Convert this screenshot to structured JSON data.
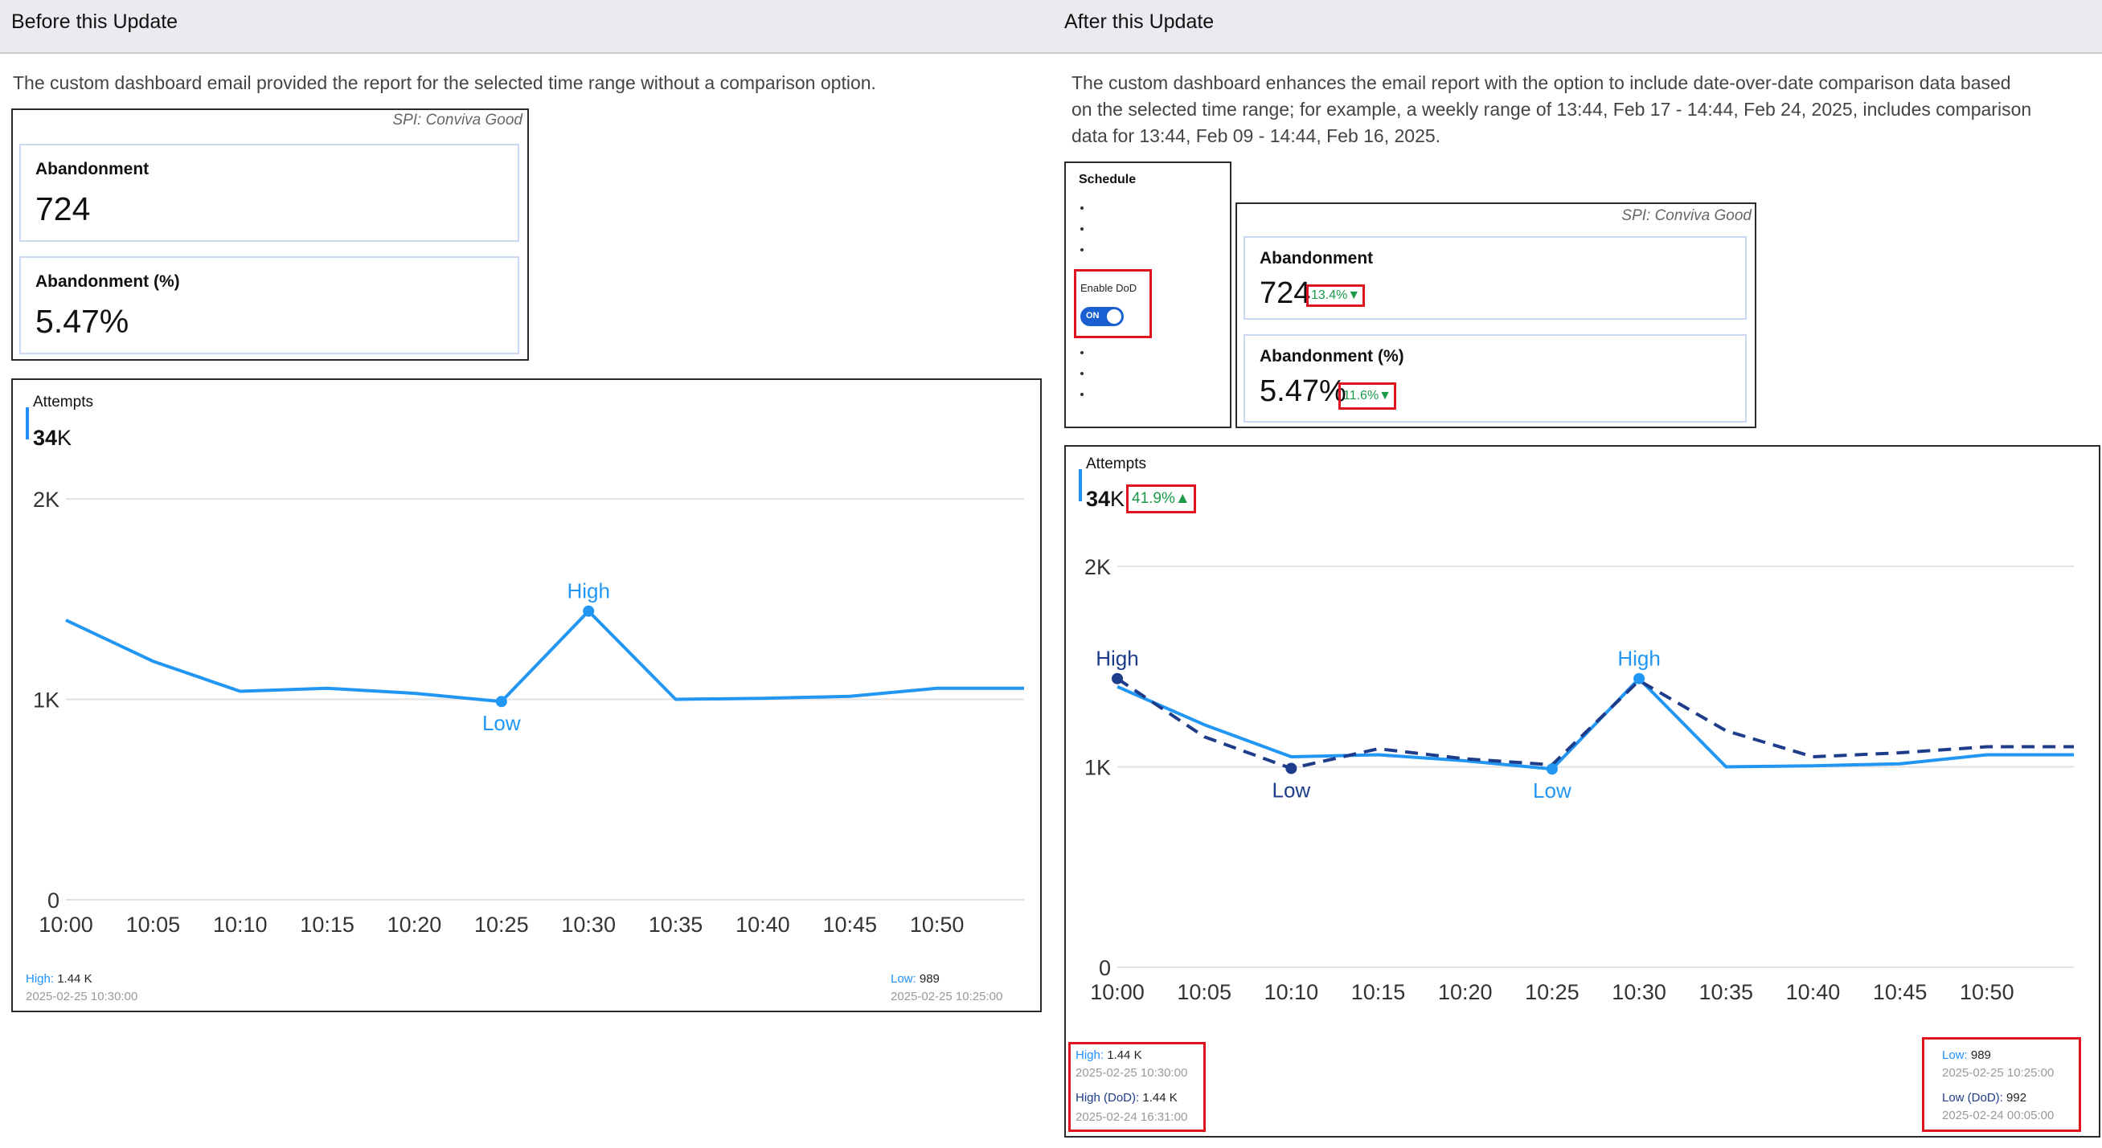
{
  "before": {
    "header": "Before this Update",
    "description": "The custom dashboard email provided the report for the selected time range without a comparison option.",
    "spi": "SPI: Conviva Good",
    "cards": [
      {
        "label": "Abandonment",
        "value": "724"
      },
      {
        "label": "Abandonment (%)",
        "value": "5.47%"
      }
    ],
    "chart": {
      "title": "Attempts",
      "total_bold": "34",
      "total_suffix": "K",
      "high_label": "High",
      "low_label": "Low",
      "legend": {
        "high": {
          "name": "High:",
          "value": "1.44 K",
          "time": "2025-02-25 10:30:00"
        },
        "low": {
          "name": "Low:",
          "value": "989",
          "time": "2025-02-25 10:25:00"
        }
      }
    }
  },
  "after": {
    "header": "After this Update",
    "description_lines": [
      "The custom dashboard enhances the email report with the option to include date-over-date comparison data based",
      "on the selected time range; for example, a weekly range of 13:44, Feb 17 - 14:44, Feb 24, 2025, includes comparison",
      "data for 13:44, Feb 09 - 14:44, Feb 16, 2025."
    ],
    "schedule": {
      "title": "Schedule",
      "toggle_label": "Enable DoD",
      "toggle_state": "ON"
    },
    "spi": "SPI: Conviva Good",
    "cards": [
      {
        "label": "Abandonment",
        "value": "724",
        "change": "13.4%▼"
      },
      {
        "label": "Abandonment (%)",
        "value": "5.47%",
        "change": "11.6%▼"
      }
    ],
    "chart": {
      "title": "Attempts",
      "total_bold": "34",
      "total_suffix": "K",
      "change": "41.9%▲",
      "high_label": "High",
      "low_label": "Low",
      "legend": {
        "high": {
          "name": "High:",
          "value": "1.44 K",
          "time": "2025-02-25 10:30:00"
        },
        "high_dod": {
          "name": "High (DoD):",
          "value": "1.44 K",
          "time": "2025-02-24 16:31:00"
        },
        "low": {
          "name": "Low:",
          "value": "989",
          "time": "2025-02-25 10:25:00"
        },
        "low_dod": {
          "name": "Low (DoD):",
          "value": "992",
          "time": "2025-02-24  00:05:00"
        }
      }
    }
  },
  "chart_data": [
    {
      "type": "line",
      "title": "Attempts",
      "x": [
        "10:00",
        "10:05",
        "10:10",
        "10:15",
        "10:20",
        "10:25",
        "10:30",
        "10:35",
        "10:40",
        "10:45",
        "10:50",
        "10:55"
      ],
      "xticks": [
        "10:00",
        "10:05",
        "10:10",
        "10:15",
        "10:20",
        "10:25",
        "10:30",
        "10:35",
        "10:40",
        "10:45",
        "10:50"
      ],
      "yticks": [
        "0",
        "1K",
        "2K"
      ],
      "ylim": [
        0,
        2000
      ],
      "colors": {
        "current": "#2196f3"
      },
      "series": [
        {
          "values": [
            1395,
            1190,
            1040,
            1055,
            1030,
            989,
            1440,
            1000,
            1005,
            1015,
            1055,
            1055
          ]
        }
      ]
    },
    {
      "type": "line",
      "title": "Attempts",
      "x": [
        "10:00",
        "10:05",
        "10:10",
        "10:15",
        "10:20",
        "10:25",
        "10:30",
        "10:35",
        "10:40",
        "10:45",
        "10:50",
        "10:55"
      ],
      "xticks": [
        "10:00",
        "10:05",
        "10:10",
        "10:15",
        "10:20",
        "10:25",
        "10:30",
        "10:35",
        "10:40",
        "10:45",
        "10:50"
      ],
      "yticks": [
        "0",
        "1K",
        "2K"
      ],
      "ylim": [
        0,
        2000
      ],
      "colors": {
        "current": "#2196f3",
        "dod": "#1d3c8a"
      },
      "series": [
        {
          "values": [
            1400,
            1210,
            1050,
            1060,
            1030,
            989,
            1440,
            1000,
            1005,
            1015,
            1060,
            1060
          ]
        },
        {
          "values": [
            1440,
            1150,
            992,
            1090,
            1040,
            1010,
            1430,
            1180,
            1050,
            1070,
            1100,
            1100
          ]
        }
      ]
    }
  ]
}
